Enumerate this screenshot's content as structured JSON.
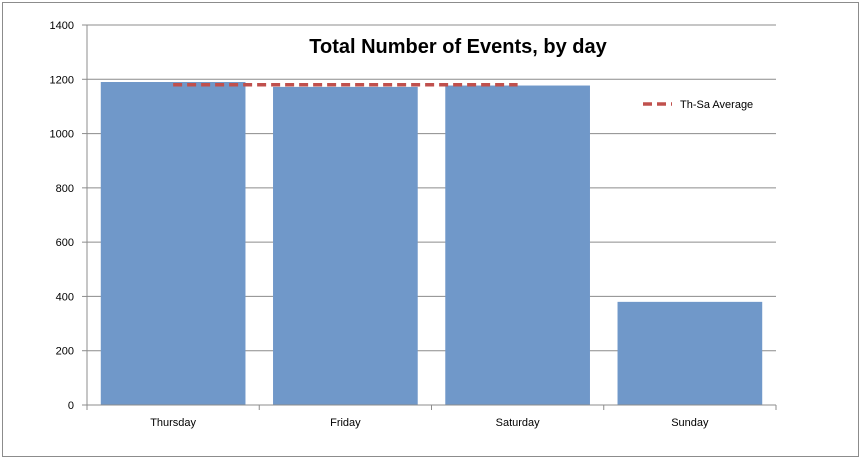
{
  "chart_data": {
    "type": "bar",
    "title": "Total Number of Events, by day",
    "categories": [
      "Thursday",
      "Friday",
      "Saturday",
      "Sunday"
    ],
    "series": [
      {
        "values": [
          1190,
          1172,
          1177,
          380
        ],
        "color": "#7098c9"
      },
      {
        "name": "Th-Sa Average",
        "type": "line",
        "style": "dashed",
        "value": 1180,
        "spans": [
          "Thursday",
          "Friday",
          "Saturday"
        ],
        "color": "#c0504d"
      }
    ],
    "xlabel": "",
    "ylabel": "",
    "ylim": [
      0,
      1400
    ],
    "yticks": [
      0,
      200,
      400,
      600,
      800,
      1000,
      1200,
      1400
    ],
    "grid": true,
    "legend": "right"
  }
}
